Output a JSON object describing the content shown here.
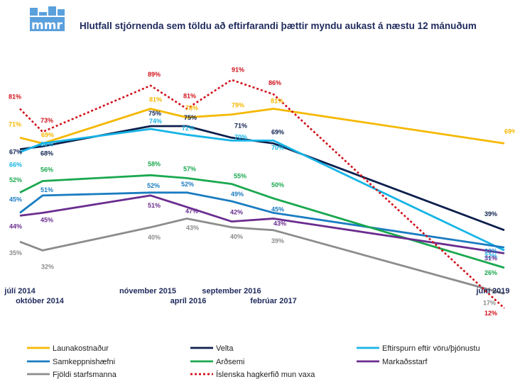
{
  "logo": {
    "text": "mmr",
    "color": "#5aa0dd"
  },
  "chart_data": {
    "type": "line",
    "title": "Hlutfall stjórnenda sem töldu að eftirfarandi þættir myndu aukast á næstu 12 mánuðum",
    "x": [
      "júlí 2014",
      "október 2014",
      "nóvember 2015",
      "apríl 2016",
      "september 2016",
      "febrúar 2017",
      "júní 2019"
    ],
    "value_suffix": "%",
    "legend_position": "bottom",
    "grid": false,
    "series": [
      {
        "name": "Launakostnaður",
        "color": "#f5b800",
        "dash": false,
        "values": [
          71,
          69,
          81,
          78,
          79,
          81,
          69
        ]
      },
      {
        "name": "Velta",
        "color": "#0d1f4d",
        "dash": false,
        "values": [
          67,
          68,
          75,
          75,
          71,
          69,
          39
        ]
      },
      {
        "name": "Eftirspurn eftir vöru/þjónustu",
        "color": "#16b4e6",
        "dash": false,
        "values": [
          66,
          69,
          74,
          72,
          70,
          70,
          32
        ]
      },
      {
        "name": "Samkeppnishæfni",
        "color": "#1a7cc0",
        "dash": false,
        "values": [
          45,
          51,
          52,
          52,
          49,
          45,
          33
        ]
      },
      {
        "name": "Arðsemi",
        "color": "#1aa84f",
        "dash": false,
        "values": [
          52,
          56,
          58,
          57,
          55,
          50,
          26
        ]
      },
      {
        "name": "Markaðsstarf",
        "color": "#6a2d8f",
        "dash": false,
        "values": [
          44,
          45,
          51,
          47,
          42,
          43,
          31
        ]
      },
      {
        "name": "Fjöldi starfsmanna",
        "color": "#8c8c8c",
        "dash": false,
        "values": [
          35,
          32,
          40,
          43,
          40,
          39,
          17
        ]
      },
      {
        "name": "Íslenska hagkerfið mun vaxa",
        "color": "#d0101a",
        "dash": true,
        "values": [
          81,
          73,
          89,
          81,
          91,
          86,
          12
        ]
      }
    ]
  }
}
